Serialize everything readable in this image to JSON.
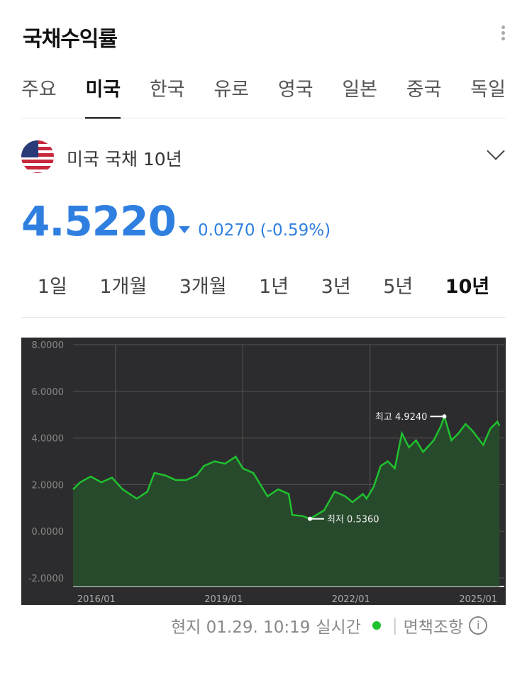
{
  "header": {
    "title": "국채수익률"
  },
  "tabs": [
    "주요",
    "미국",
    "한국",
    "유로",
    "영국",
    "일본",
    "중국",
    "독일"
  ],
  "active_tab": 1,
  "bond": {
    "name": "미국 국채 10년",
    "price": "4.5220",
    "change": "0.0270 (-0.59%)",
    "direction": "down",
    "color": "#2f7fe0"
  },
  "periods": [
    "1일",
    "1개월",
    "3개월",
    "1년",
    "3년",
    "5년",
    "10년"
  ],
  "active_period": 6,
  "footer": {
    "time": "현지 01.29. 10:19",
    "realtime": "실시간",
    "disclaimer": "면책조항",
    "info_icon": "i"
  },
  "chart_data": {
    "type": "area",
    "line_color": "#1fc12f",
    "yticks": [
      "8.0000",
      "6.0000",
      "4.0000",
      "2.0000",
      "0.0000",
      "-2.0000"
    ],
    "ylim": [
      -2,
      8
    ],
    "xticks": [
      "2016/01",
      "2019/01",
      "2022/01",
      "2025/01"
    ],
    "grid": true,
    "annotations": {
      "high": "최고 4.9240",
      "low": "최저 0.5360"
    },
    "points": [
      [
        "2015-01",
        1.8
      ],
      [
        "2015-03",
        2.1
      ],
      [
        "2015-06",
        2.35
      ],
      [
        "2015-09",
        2.1
      ],
      [
        "2015-12",
        2.3
      ],
      [
        "2016-03",
        1.8
      ],
      [
        "2016-07",
        1.4
      ],
      [
        "2016-10",
        1.7
      ],
      [
        "2016-12",
        2.5
      ],
      [
        "2017-03",
        2.4
      ],
      [
        "2017-06",
        2.2
      ],
      [
        "2017-09",
        2.2
      ],
      [
        "2017-12",
        2.4
      ],
      [
        "2018-02",
        2.8
      ],
      [
        "2018-05",
        3.0
      ],
      [
        "2018-08",
        2.9
      ],
      [
        "2018-11",
        3.2
      ],
      [
        "2019-01",
        2.7
      ],
      [
        "2019-04",
        2.5
      ],
      [
        "2019-06",
        2.0
      ],
      [
        "2019-08",
        1.5
      ],
      [
        "2019-11",
        1.8
      ],
      [
        "2020-02",
        1.6
      ],
      [
        "2020-03",
        0.7
      ],
      [
        "2020-06",
        0.65
      ],
      [
        "2020-08",
        0.536
      ],
      [
        "2020-12",
        0.9
      ],
      [
        "2021-03",
        1.7
      ],
      [
        "2021-06",
        1.5
      ],
      [
        "2021-08",
        1.25
      ],
      [
        "2021-11",
        1.6
      ],
      [
        "2021-12",
        1.4
      ],
      [
        "2022-02",
        1.9
      ],
      [
        "2022-04",
        2.8
      ],
      [
        "2022-06",
        3.0
      ],
      [
        "2022-08",
        2.7
      ],
      [
        "2022-10",
        4.2
      ],
      [
        "2022-12",
        3.6
      ],
      [
        "2023-02",
        3.9
      ],
      [
        "2023-04",
        3.4
      ],
      [
        "2023-07",
        3.9
      ],
      [
        "2023-09",
        4.5
      ],
      [
        "2023-10",
        4.924
      ],
      [
        "2023-12",
        3.9
      ],
      [
        "2024-02",
        4.2
      ],
      [
        "2024-04",
        4.6
      ],
      [
        "2024-06",
        4.3
      ],
      [
        "2024-09",
        3.7
      ],
      [
        "2024-11",
        4.4
      ],
      [
        "2025-01",
        4.7
      ],
      [
        "2025-01",
        4.522
      ]
    ]
  }
}
